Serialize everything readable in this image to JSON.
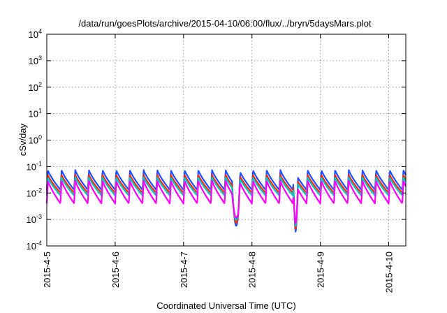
{
  "chart_data": {
    "type": "line",
    "title": "/data/run/goesPlots/archive/2015-04-10/06:00/flux/../bryn/5daysMars.plot",
    "xlabel": "Coordinated Universal Time (UTC)",
    "ylabel": "cSv/day",
    "yscale": "log",
    "ylim": [
      0.0001,
      10000
    ],
    "xlim": [
      "2015-04-05 00:00",
      "2015-04-10 06:00"
    ],
    "grid": true,
    "x_ticks": [
      {
        "label": "2015-4-5",
        "value": "2015-04-05"
      },
      {
        "label": "2015-4-6",
        "value": "2015-04-06"
      },
      {
        "label": "2015-4-7",
        "value": "2015-04-07"
      },
      {
        "label": "2015-4-8",
        "value": "2015-04-08"
      },
      {
        "label": "2015-4-9",
        "value": "2015-04-09"
      },
      {
        "label": "2015-4-10",
        "value": "2015-04-10"
      }
    ],
    "y_ticks": [
      {
        "base": "10",
        "exp": "-4",
        "value": 0.0001
      },
      {
        "base": "10",
        "exp": "-3",
        "value": 0.001
      },
      {
        "base": "10",
        "exp": "-2",
        "value": 0.01
      },
      {
        "base": "10",
        "exp": "-1",
        "value": 0.1
      },
      {
        "base": "10",
        "exp": "0",
        "value": 1
      },
      {
        "base": "10",
        "exp": "1",
        "value": 10
      },
      {
        "base": "10",
        "exp": "2",
        "value": 100
      },
      {
        "base": "10",
        "exp": "3",
        "value": 1000
      },
      {
        "base": "10",
        "exp": "4",
        "value": 10000
      }
    ],
    "pattern": {
      "cycle_hours": 4.8,
      "gaps": [
        {
          "start": "2015-04-07 17:00",
          "end": "2015-04-07 20:30",
          "min_value": 0.0009
        },
        {
          "start": "2015-04-08 14:30",
          "end": "2015-04-08 16:30",
          "min_value": 0.0004
        }
      ]
    },
    "series": [
      {
        "color": "#1f4fff",
        "peak": 0.075,
        "trough": 0.013
      },
      {
        "color": "#ff2a00",
        "peak": 0.05,
        "trough": 0.01
      },
      {
        "color": "#00c8c8",
        "peak": 0.04,
        "trough": 0.008
      },
      {
        "color": "#ff00ff",
        "peak": 0.03,
        "trough": 0.004
      }
    ]
  }
}
